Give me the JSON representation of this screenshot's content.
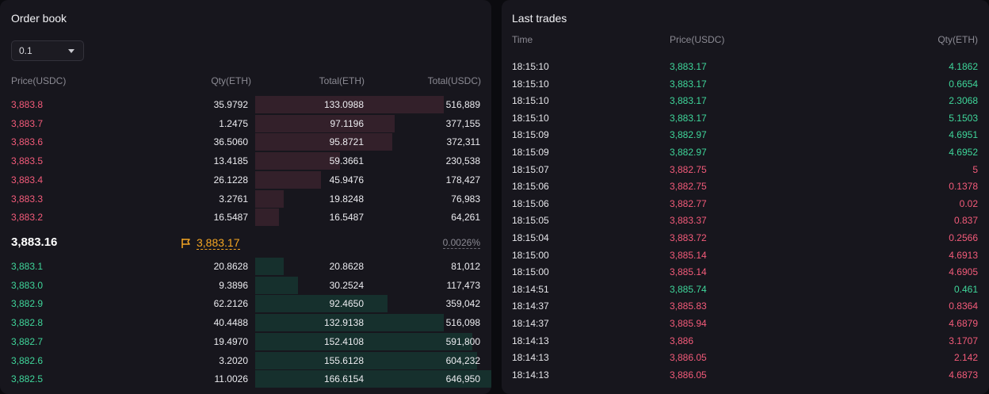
{
  "orderbook": {
    "title": "Order book",
    "precision": "0.1",
    "headers": {
      "price": "Price(USDC)",
      "qty": "Qty(ETH)",
      "total": "Total(ETH)",
      "total_usdc": "Total(USDC)"
    },
    "asks": [
      {
        "price": "3,883.8",
        "qty": "35.9792",
        "total": "133.0988",
        "total_usdc": "516,889",
        "depth": 0.8
      },
      {
        "price": "3,883.7",
        "qty": "1.2475",
        "total": "97.1196",
        "total_usdc": "377,155",
        "depth": 0.59
      },
      {
        "price": "3,883.6",
        "qty": "36.5060",
        "total": "95.8721",
        "total_usdc": "372,311",
        "depth": 0.58
      },
      {
        "price": "3,883.5",
        "qty": "13.4185",
        "total": "59.3661",
        "total_usdc": "230,538",
        "depth": 0.36
      },
      {
        "price": "3,883.4",
        "qty": "26.1228",
        "total": "45.9476",
        "total_usdc": "178,427",
        "depth": 0.28
      },
      {
        "price": "3,883.3",
        "qty": "3.2761",
        "total": "19.8248",
        "total_usdc": "76,983",
        "depth": 0.12
      },
      {
        "price": "3,883.2",
        "qty": "16.5487",
        "total": "16.5487",
        "total_usdc": "64,261",
        "depth": 0.1
      }
    ],
    "mid_price": "3,883.16",
    "mark_price": "3,883.17",
    "spread": "0.0026%",
    "bids": [
      {
        "price": "3,883.1",
        "qty": "20.8628",
        "total": "20.8628",
        "total_usdc": "81,012",
        "depth": 0.12
      },
      {
        "price": "3,883.0",
        "qty": "9.3896",
        "total": "30.2524",
        "total_usdc": "117,473",
        "depth": 0.18
      },
      {
        "price": "3,882.9",
        "qty": "62.2126",
        "total": "92.4650",
        "total_usdc": "359,042",
        "depth": 0.56
      },
      {
        "price": "3,882.8",
        "qty": "40.4488",
        "total": "132.9138",
        "total_usdc": "516,098",
        "depth": 0.8
      },
      {
        "price": "3,882.7",
        "qty": "19.4970",
        "total": "152.4108",
        "total_usdc": "591,800",
        "depth": 0.92
      },
      {
        "price": "3,882.6",
        "qty": "3.2020",
        "total": "155.6128",
        "total_usdc": "604,232",
        "depth": 0.94
      },
      {
        "price": "3,882.5",
        "qty": "11.0026",
        "total": "166.6154",
        "total_usdc": "646,950",
        "depth": 1.0
      }
    ],
    "colors": {
      "ask": "#f45b7a",
      "bid": "#3fd69a",
      "mark": "#f5a623"
    }
  },
  "trades": {
    "title": "Last trades",
    "headers": {
      "time": "Time",
      "price": "Price(USDC)",
      "qty": "Qty(ETH)"
    },
    "rows": [
      {
        "time": "18:15:10",
        "price": "3,883.17",
        "qty": "4.1862",
        "side": "buy"
      },
      {
        "time": "18:15:10",
        "price": "3,883.17",
        "qty": "0.6654",
        "side": "buy"
      },
      {
        "time": "18:15:10",
        "price": "3,883.17",
        "qty": "2.3068",
        "side": "buy"
      },
      {
        "time": "18:15:10",
        "price": "3,883.17",
        "qty": "5.1503",
        "side": "buy"
      },
      {
        "time": "18:15:09",
        "price": "3,882.97",
        "qty": "4.6951",
        "side": "buy"
      },
      {
        "time": "18:15:09",
        "price": "3,882.97",
        "qty": "4.6952",
        "side": "buy"
      },
      {
        "time": "18:15:07",
        "price": "3,882.75",
        "qty": "5",
        "side": "sell"
      },
      {
        "time": "18:15:06",
        "price": "3,882.75",
        "qty": "0.1378",
        "side": "sell"
      },
      {
        "time": "18:15:06",
        "price": "3,882.77",
        "qty": "0.02",
        "side": "sell"
      },
      {
        "time": "18:15:05",
        "price": "3,883.37",
        "qty": "0.837",
        "side": "sell"
      },
      {
        "time": "18:15:04",
        "price": "3,883.72",
        "qty": "0.2566",
        "side": "sell"
      },
      {
        "time": "18:15:00",
        "price": "3,885.14",
        "qty": "4.6913",
        "side": "sell"
      },
      {
        "time": "18:15:00",
        "price": "3,885.14",
        "qty": "4.6905",
        "side": "sell"
      },
      {
        "time": "18:14:51",
        "price": "3,885.74",
        "qty": "0.461",
        "side": "buy"
      },
      {
        "time": "18:14:37",
        "price": "3,885.83",
        "qty": "0.8364",
        "side": "sell"
      },
      {
        "time": "18:14:37",
        "price": "3,885.94",
        "qty": "4.6879",
        "side": "sell"
      },
      {
        "time": "18:14:13",
        "price": "3,886",
        "qty": "3.1707",
        "side": "sell"
      },
      {
        "time": "18:14:13",
        "price": "3,886.05",
        "qty": "2.142",
        "side": "sell"
      },
      {
        "time": "18:14:13",
        "price": "3,886.05",
        "qty": "4.6873",
        "side": "sell"
      }
    ]
  }
}
